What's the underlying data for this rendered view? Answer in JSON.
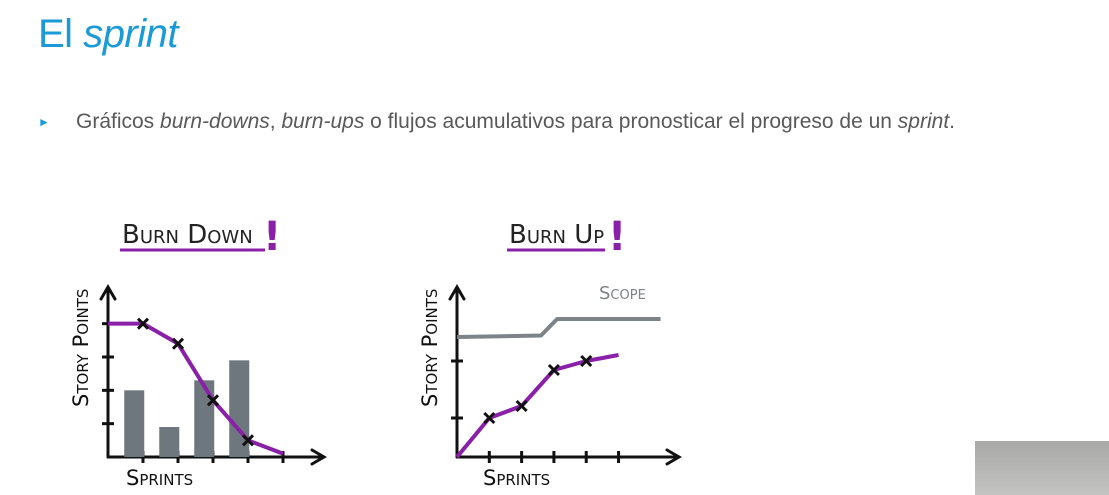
{
  "title": {
    "plain": "El ",
    "italic": "sprint"
  },
  "bullet": {
    "marker": "►",
    "parts": [
      {
        "text": "Gráficos ",
        "italic": false
      },
      {
        "text": "burn-downs",
        "italic": true
      },
      {
        "text": ", ",
        "italic": false
      },
      {
        "text": "burn-ups",
        "italic": true
      },
      {
        "text": " o flujos acumulativos para pronosticar el progreso de un ",
        "italic": false
      },
      {
        "text": "sprint",
        "italic": true
      },
      {
        "text": ".",
        "italic": false
      }
    ]
  },
  "colors": {
    "title": "#1a9ad6",
    "text": "#595959",
    "accent": "#8a1fa8",
    "bars": "#6e777e",
    "scope": "#7d8387"
  },
  "chart_data": [
    {
      "type": "bar",
      "title": "Burn Down",
      "title_mark": "!",
      "xlabel": "Sprints",
      "ylabel": "Story Points",
      "bars": [
        {
          "x": 1,
          "value": 2
        },
        {
          "x": 2,
          "value": 0.9
        },
        {
          "x": 3,
          "value": 2.3
        },
        {
          "x": 4,
          "value": 2.9
        }
      ],
      "series": [
        {
          "type": "line",
          "points": [
            [
              0,
              4
            ],
            [
              1,
              4
            ],
            [
              2,
              3.4
            ],
            [
              3,
              1.7
            ],
            [
              4,
              0.5
            ],
            [
              5,
              0.1
            ]
          ],
          "markers": [
            1,
            2,
            3,
            4
          ]
        }
      ],
      "xlim": [
        0,
        6
      ],
      "ylim": [
        0,
        4.8
      ]
    },
    {
      "type": "line",
      "title": "Burn Up",
      "title_mark": "!",
      "xlabel": "Sprints",
      "ylabel": "Story Points",
      "series": [
        {
          "name": "Scope",
          "points": [
            [
              0,
              4
            ],
            [
              2.6,
              4.05
            ],
            [
              3.1,
              4.6
            ],
            [
              6.3,
              4.6
            ]
          ]
        },
        {
          "points": [
            [
              0,
              0
            ],
            [
              1,
              1.3
            ],
            [
              2,
              1.7
            ],
            [
              3,
              2.9
            ],
            [
              4,
              3.2
            ],
            [
              5,
              3.4
            ]
          ],
          "markers": [
            1,
            2,
            3,
            4
          ]
        }
      ],
      "xlim": [
        0,
        6.5
      ],
      "ylim": [
        0,
        5
      ]
    }
  ]
}
